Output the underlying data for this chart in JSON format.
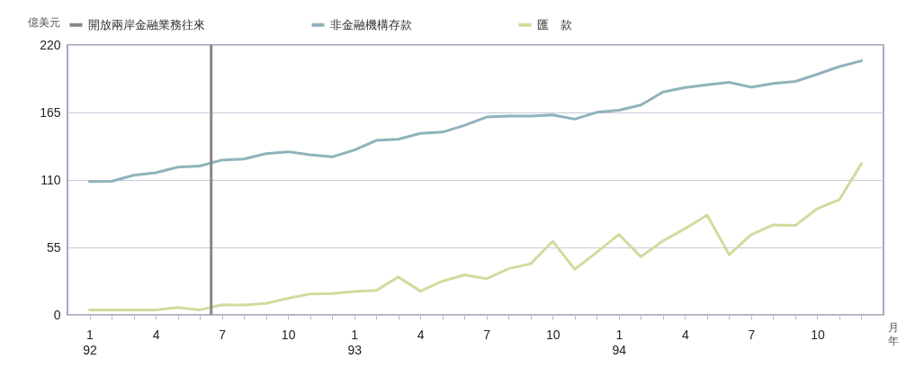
{
  "chart_data": {
    "type": "line",
    "ylabel": "億美元",
    "xlabel": "月年",
    "legend": "top",
    "grid": "y",
    "ylim": [
      0,
      220
    ],
    "yticks": [
      0,
      55,
      110,
      165,
      220
    ],
    "categories": [
      "1\n92",
      null,
      null,
      "4",
      null,
      null,
      "7",
      null,
      null,
      "10",
      null,
      null,
      "1\n93",
      null,
      null,
      "4",
      null,
      null,
      "7",
      null,
      null,
      "10",
      null,
      null,
      "1\n94",
      null,
      null,
      "4",
      null,
      null,
      "7",
      null,
      null,
      "10",
      null,
      null
    ],
    "ref_lines": [
      {
        "axis": "x",
        "value": "7",
        "label": "開放兩岸金融業務往來",
        "color": "#8c8585"
      }
    ],
    "series": [
      {
        "name": "非金融機構存款",
        "color": "#8fb3bb",
        "values": [
          108.7,
          108.9,
          113.8,
          115.9,
          120.5,
          121.4,
          126.2,
          127.1,
          131.4,
          133.0,
          130.5,
          128.8,
          134.3,
          142.2,
          143.2,
          148.0,
          149.0,
          154.5,
          161.3,
          162.1,
          162.1,
          163.0,
          159.6,
          165.1,
          166.8,
          171.0,
          181.7,
          185.3,
          187.5,
          189.6,
          185.6,
          188.7,
          190.3,
          196.2,
          202.4,
          207.1
        ]
      },
      {
        "name": "匯　款",
        "color": "#cfdc9e",
        "values": [
          4.1,
          4.1,
          4.1,
          4.1,
          6.1,
          4.1,
          8.2,
          8.0,
          9.4,
          13.6,
          17.1,
          17.4,
          19.1,
          19.9,
          30.9,
          19.4,
          27.5,
          32.6,
          29.5,
          37.7,
          41.7,
          60.0,
          37.2,
          51.1,
          65.6,
          47.4,
          60.3,
          70.3,
          81.4,
          49.1,
          65.3,
          73.4,
          72.9,
          86.7,
          94.0,
          123.3
        ]
      }
    ]
  }
}
